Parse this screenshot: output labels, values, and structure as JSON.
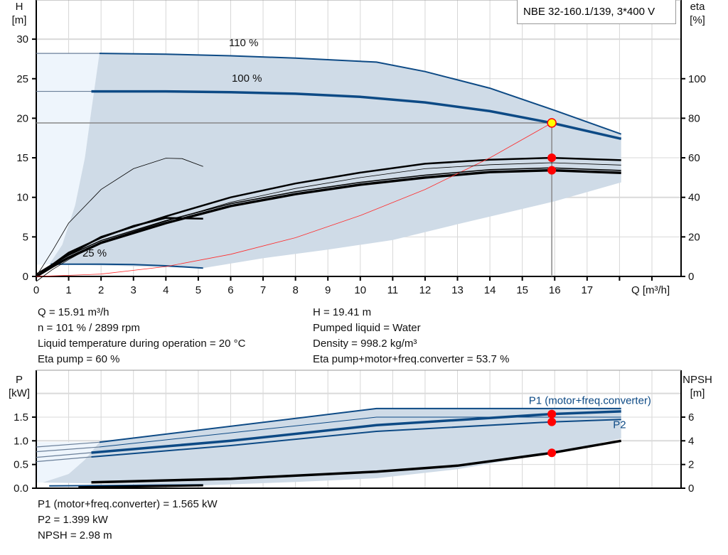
{
  "title": "NBE 32-160.1/139, 3*400 V",
  "colors": {
    "curve": "#0d4a85",
    "shade": "#cfdbe7",
    "light": "#eef5fc",
    "system": "#ff2a2a",
    "duty": "#ff0000",
    "duty_main": "#ffff00"
  },
  "info_top": {
    "left": [
      "Q = 15.91 m³/h",
      "n = 101 % / 2899 rpm",
      "Liquid temperature during operation = 20 °C",
      "Eta pump = 60 %"
    ],
    "right": [
      "H = 19.41 m",
      "Pumped liquid = Water",
      "Density = 998.2 kg/m³",
      "Eta pump+motor+freq.converter = 53.7 %"
    ]
  },
  "info_bottom": [
    "P1 (motor+freq.converter) = 1.565 kW",
    "P2 = 1.399 kW",
    "NPSH = 2.98 m"
  ],
  "chart_data": [
    {
      "type": "line",
      "xlabel": "Q [m³/h]",
      "ylabel_left": "H\n[m]",
      "ylabel_left_lines": [
        "H",
        "[m]"
      ],
      "ylabel_right_lines": [
        "eta",
        "[%]"
      ],
      "xlim": [
        0,
        19.9
      ],
      "ylim_left": [
        0,
        35
      ],
      "ylim_right": [
        0,
        140
      ],
      "grid": true,
      "xticks": [
        0,
        1,
        2,
        3,
        4,
        5,
        6,
        7,
        8,
        9,
        10,
        11,
        12,
        13,
        14,
        15,
        16,
        17
      ],
      "yticks_left": [
        0,
        5,
        10,
        15,
        20,
        25,
        30
      ],
      "yticks_right": [
        0,
        20,
        40,
        60,
        80,
        100
      ],
      "labels": [
        {
          "text": "110 %",
          "x": 6.4,
          "y": 29.1
        },
        {
          "text": "100 %",
          "x": 6.5,
          "y": 24.6
        },
        {
          "text": "25 %",
          "x": 1.8,
          "y": 2.5
        }
      ],
      "series": [
        {
          "name": "110 %",
          "axis": "H",
          "points": [
            [
              1.95,
              28.2
            ],
            [
              4,
              28.1
            ],
            [
              6,
              27.9
            ],
            [
              8,
              27.6
            ],
            [
              10.5,
              27.1
            ],
            [
              12,
              25.9
            ],
            [
              14,
              23.8
            ],
            [
              16,
              21
            ],
            [
              18.05,
              18
            ]
          ]
        },
        {
          "name": "100 %",
          "axis": "H",
          "points": [
            [
              1.7,
              23.4
            ],
            [
              4,
              23.4
            ],
            [
              6,
              23.3
            ],
            [
              8,
              23.1
            ],
            [
              10,
              22.7
            ],
            [
              12,
              22
            ],
            [
              14,
              20.9
            ],
            [
              15.91,
              19.41
            ],
            [
              18.05,
              17.4
            ]
          ]
        },
        {
          "name": "25 %",
          "axis": "H",
          "points": [
            [
              0.45,
              1.55
            ],
            [
              2,
              1.55
            ],
            [
              3,
              1.5
            ],
            [
              4,
              1.35
            ],
            [
              5.15,
              1.05
            ]
          ]
        },
        {
          "axis": "eta",
          "role": "eta pump",
          "points": [
            [
              0,
              0
            ],
            [
              0.5,
              6
            ],
            [
              1,
              11
            ],
            [
              2,
              20
            ],
            [
              4,
              30.4
            ],
            [
              6,
              40
            ],
            [
              8,
              47
            ],
            [
              10,
              52.5
            ],
            [
              12,
              57
            ],
            [
              14,
              59
            ],
            [
              15.91,
              60
            ],
            [
              18.05,
              58.8
            ]
          ]
        },
        {
          "axis": "eta",
          "role": "eta total",
          "points": [
            [
              0,
              0
            ],
            [
              0.5,
              5
            ],
            [
              1,
              9.5
            ],
            [
              2,
              17
            ],
            [
              4,
              27
            ],
            [
              6,
              35.6
            ],
            [
              8,
              41.6
            ],
            [
              10,
              46.4
            ],
            [
              12,
              50
            ],
            [
              14,
              52.8
            ],
            [
              15.91,
              53.7
            ],
            [
              18.05,
              52.4
            ]
          ]
        },
        {
          "axis": "eta",
          "role": "eta 25 %",
          "points": [
            [
              0,
              0
            ],
            [
              0.5,
              6
            ],
            [
              1,
              12
            ],
            [
              2,
              19.6
            ],
            [
              3,
              25.5
            ],
            [
              4,
              29.6
            ],
            [
              5.15,
              29.2
            ]
          ]
        },
        {
          "axis": "eta",
          "role": "eta low speed",
          "points": [
            [
              0,
              0
            ],
            [
              0.5,
              13
            ],
            [
              1,
              27
            ],
            [
              2,
              44
            ],
            [
              3,
              54.5
            ],
            [
              4,
              59.8
            ],
            [
              4.5,
              59.6
            ],
            [
              5.15,
              55.6
            ]
          ]
        },
        {
          "axis": "H",
          "role": "system curve",
          "points": [
            [
              0,
              0
            ],
            [
              2,
              0.3
            ],
            [
              4,
              1.25
            ],
            [
              6,
              2.8
            ],
            [
              8,
              4.9
            ],
            [
              10,
              7.7
            ],
            [
              12,
              11
            ],
            [
              14,
              15
            ],
            [
              15.91,
              19.41
            ]
          ]
        }
      ],
      "envelope": {
        "lower": [
          [
            0.45,
            1.55
          ],
          [
            5.15,
            1.05
          ],
          [
            7,
            2.3
          ],
          [
            9,
            3.4
          ],
          [
            11,
            4.6
          ],
          [
            13,
            6.6
          ],
          [
            16,
            9.5
          ],
          [
            18.05,
            11.9
          ]
        ],
        "left": [
          [
            0.4,
            1.5
          ],
          [
            0.8,
            4
          ],
          [
            1.2,
            9
          ],
          [
            1.5,
            15
          ],
          [
            1.7,
            21
          ],
          [
            1.95,
            28.2
          ]
        ]
      },
      "duty_point": {
        "Q": 15.91,
        "H": 19.41,
        "eta_pump": 60,
        "eta_total": 53.7
      }
    },
    {
      "type": "line",
      "xlim": [
        0,
        19.9
      ],
      "ylim_left": [
        0,
        2.0
      ],
      "ylim_right": [
        0,
        8
      ],
      "grid": true,
      "ylabel_left_lines": [
        "P",
        "[kW]"
      ],
      "ylabel_right_lines": [
        "NPSH",
        "[m]"
      ],
      "yticks_left": [
        "0.0",
        "0.5",
        "1.0",
        "1.5"
      ],
      "yticks_right": [
        0,
        2,
        4,
        6
      ],
      "labels": [
        {
          "text": "P1 (motor+freq.converter)",
          "x": 15.2,
          "y": 1.78
        },
        {
          "text": "P2",
          "x": 17.8,
          "y": 1.27
        }
      ],
      "series": [
        {
          "name": "P1 110 %",
          "axis": "P",
          "points": [
            [
              1.95,
              0.97
            ],
            [
              10.5,
              1.68
            ],
            [
              18.05,
              1.68
            ]
          ]
        },
        {
          "name": "P2 110 %",
          "axis": "P",
          "points": [
            [
              1.95,
              0.87
            ],
            [
              10.5,
              1.5
            ],
            [
              18.05,
              1.5
            ]
          ]
        },
        {
          "name": "P1 (motor+freq.converter)",
          "axis": "P",
          "points": [
            [
              1.7,
              0.75
            ],
            [
              6,
              1.0
            ],
            [
              10.5,
              1.33
            ],
            [
              15.91,
              1.565
            ],
            [
              18.05,
              1.62
            ]
          ]
        },
        {
          "name": "P2",
          "axis": "P",
          "points": [
            [
              1.7,
              0.66
            ],
            [
              6,
              0.9
            ],
            [
              10.5,
              1.2
            ],
            [
              15.91,
              1.399
            ],
            [
              18.05,
              1.45
            ]
          ]
        },
        {
          "name": "NPSH",
          "axis": "NPSH",
          "points": [
            [
              1.7,
              0.5
            ],
            [
              6,
              0.8
            ],
            [
              10.5,
              1.4
            ],
            [
              13,
              1.9
            ],
            [
              15.91,
              2.98
            ],
            [
              18.05,
              4.0
            ]
          ]
        },
        {
          "name": "P 25 %",
          "axis": "P",
          "points": [
            [
              0.4,
              0.05
            ],
            [
              5.15,
              0.07
            ]
          ]
        },
        {
          "name": "NPSH 25 %",
          "axis": "NPSH",
          "points": [
            [
              1.3,
              0.08
            ],
            [
              5.15,
              0.24
            ]
          ]
        }
      ],
      "envelope": {
        "lower": [
          [
            5.15,
            0.06
          ],
          [
            8,
            0.13
          ],
          [
            10.5,
            0.21
          ],
          [
            13,
            0.4
          ],
          [
            16,
            0.75
          ],
          [
            18.05,
            1.05
          ]
        ],
        "left": [
          [
            0.2,
            0.12
          ],
          [
            1,
            0.3
          ],
          [
            1.5,
            0.6
          ],
          [
            1.95,
            0.97
          ]
        ]
      },
      "duty_point": {
        "Q": 15.91,
        "P1": 1.565,
        "P2": 1.399,
        "NPSH": 2.98
      }
    }
  ]
}
